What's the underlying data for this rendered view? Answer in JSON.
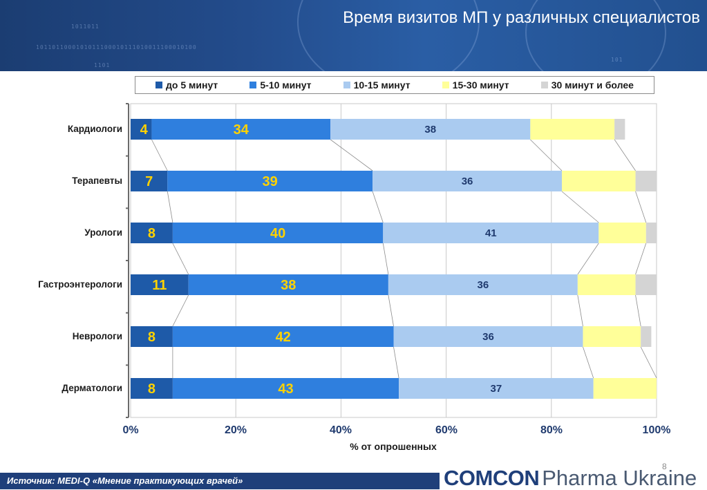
{
  "header": {
    "title": "Время визитов МП у различных специалистов",
    "deco_lines": [
      "1011011",
      "1011011000101011100010111010011100010100",
      "1101",
      "101"
    ]
  },
  "colors": {
    "header_bg": "#234c8c",
    "series": [
      "#1e5aa8",
      "#2f7fde",
      "#aacbf0",
      "#ffff99",
      "#d4d4d4"
    ],
    "value_label_yellow": "#ffd200",
    "value_label_dark": "#1f3a6e",
    "footer_bg": "#1f3f7a"
  },
  "chart_data": {
    "type": "bar",
    "orientation": "horizontal",
    "stacked": "percent",
    "categories": [
      "Кардиологи",
      "Терапевты",
      "Урологи",
      "Гастроэнтерологи",
      "Неврологи",
      "Дерматологи"
    ],
    "series": [
      {
        "name": "до 5 минут",
        "values": [
          4,
          7,
          8,
          11,
          8,
          8
        ]
      },
      {
        "name": "5-10 минут",
        "values": [
          34,
          39,
          40,
          38,
          42,
          43
        ]
      },
      {
        "name": "10-15 минут",
        "values": [
          38,
          36,
          41,
          36,
          36,
          37
        ]
      },
      {
        "name": "15-30 минут",
        "values": [
          16,
          14,
          9,
          11,
          11,
          12
        ]
      },
      {
        "name": "30 минут и более",
        "values": [
          2,
          4,
          2,
          4,
          2,
          0
        ]
      }
    ],
    "labeled_series": [
      0,
      1,
      2
    ],
    "xlabel": "% от опрошенных",
    "xlim": [
      0,
      100
    ],
    "ticks": [
      "0%",
      "20%",
      "40%",
      "60%",
      "80%",
      "100%"
    ],
    "grid": "vertical",
    "series_connectors": true,
    "legend": "top"
  },
  "page_number": "8",
  "footer": {
    "source": "Источник: MEDI-Q «Мнение практикующих врачей»"
  },
  "logo": {
    "main": "COMCON",
    "sub": "Pharma Ukraine"
  }
}
